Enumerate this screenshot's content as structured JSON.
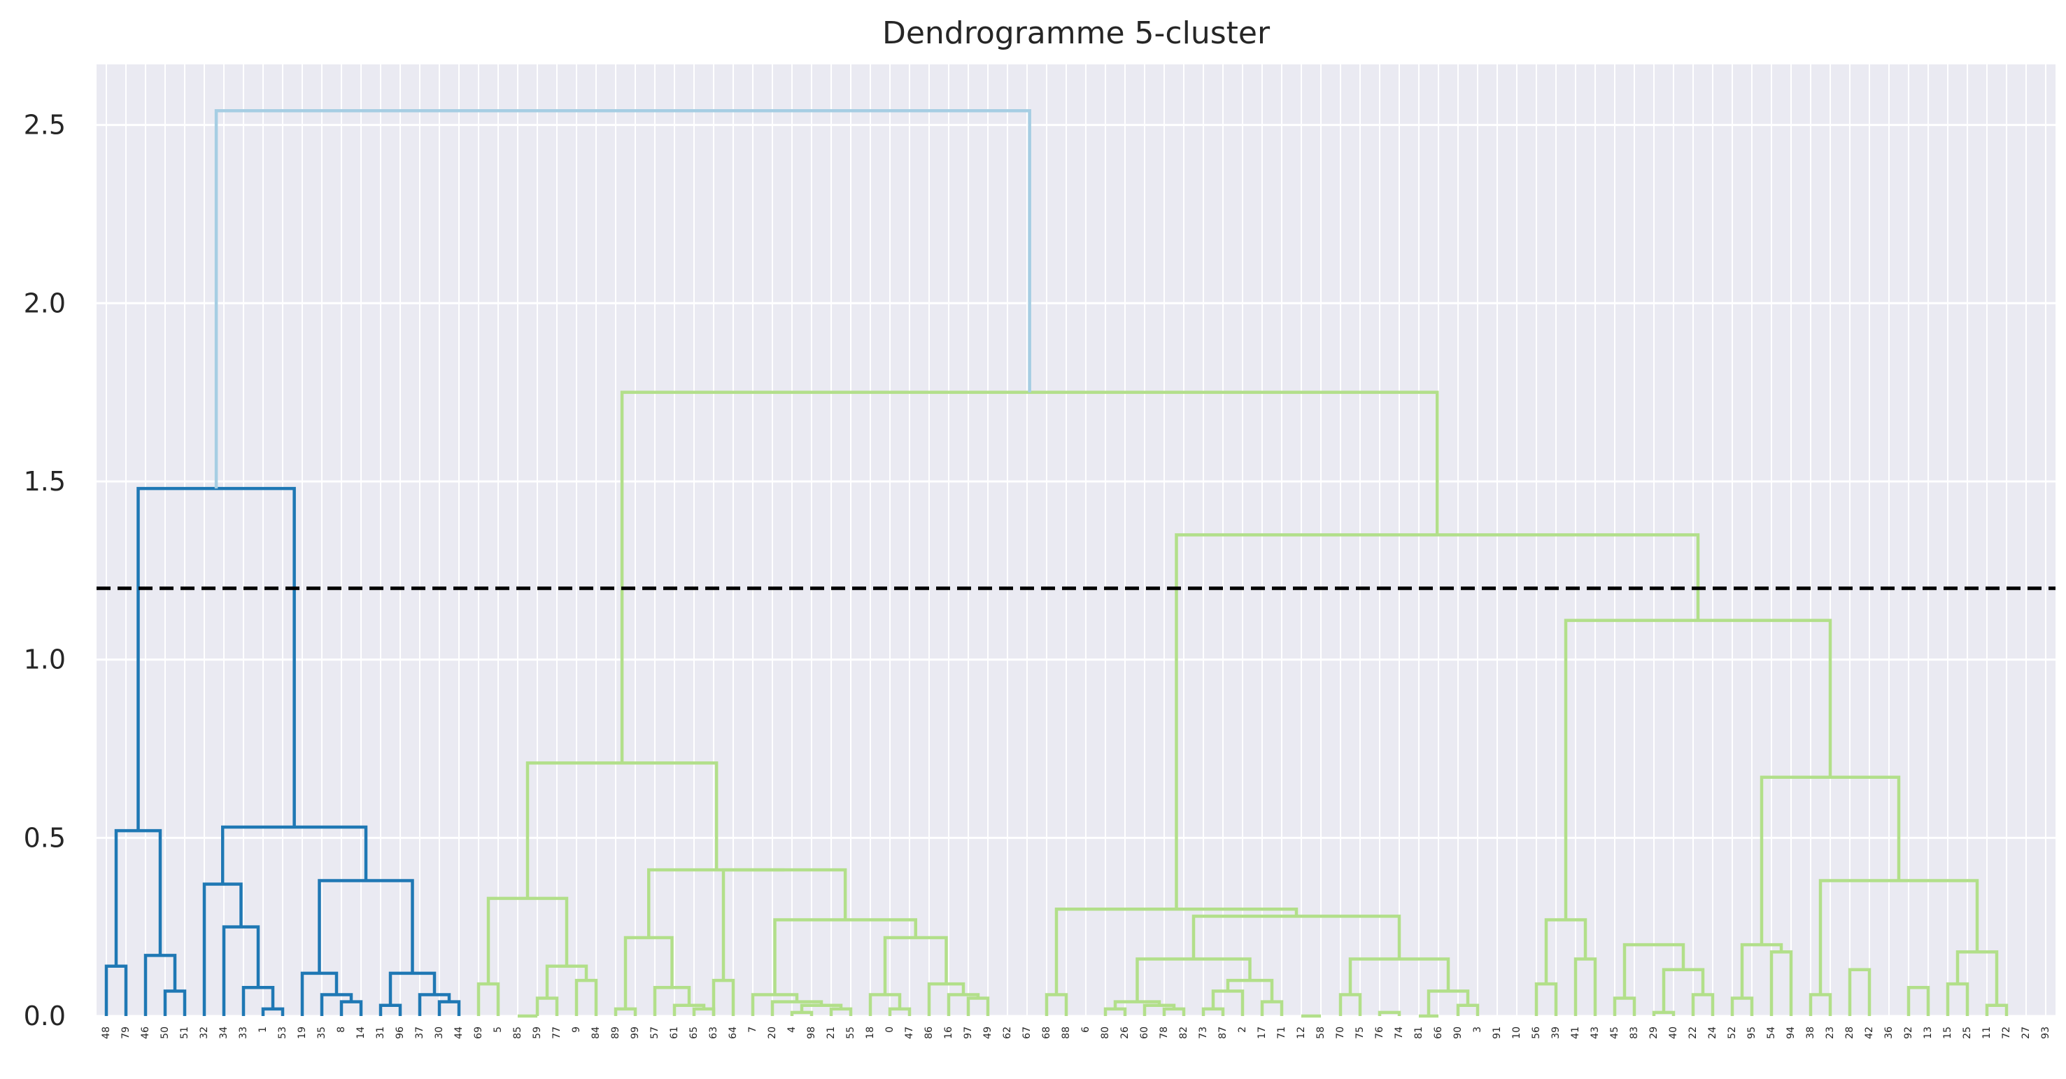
{
  "chart_data": {
    "type": "dendrogram",
    "title": "Dendrogramme 5-cluster",
    "xlabel": "",
    "ylabel": "",
    "ylim": [
      0,
      2.67
    ],
    "yticks": [
      0.0,
      0.5,
      1.0,
      1.5,
      2.0,
      2.5
    ],
    "ytick_labels": [
      "0.0",
      "0.5",
      "1.0",
      "1.5",
      "2.0",
      "2.5"
    ],
    "grid": true,
    "cut_height": 1.2,
    "colors": {
      "background": "#eaeaf2",
      "grid": "#ffffff",
      "cluster_blue": "#1f78b4",
      "cluster_green": "#b2df8a",
      "above_threshold": "#a6cee3",
      "cut_line": "#000000"
    },
    "leaves": [
      "48",
      "79",
      "46",
      "50",
      "51",
      "32",
      "34",
      "33",
      "1",
      "53",
      "19",
      "35",
      "8",
      "14",
      "31",
      "96",
      "37",
      "30",
      "44",
      "69",
      "5",
      "85",
      "59",
      "77",
      "9",
      "84",
      "89",
      "99",
      "57",
      "61",
      "65",
      "63",
      "64",
      "7",
      "20",
      "4",
      "98",
      "21",
      "55",
      "18",
      "0",
      "47",
      "86",
      "16",
      "97",
      "49",
      "62",
      "67",
      "68",
      "88",
      "6",
      "80",
      "26",
      "60",
      "78",
      "82",
      "73",
      "87",
      "2",
      "17",
      "71",
      "12",
      "58",
      "70",
      "75",
      "76",
      "74",
      "81",
      "66",
      "90",
      "3",
      "91",
      "10",
      "56",
      "39",
      "41",
      "43",
      "45",
      "83",
      "29",
      "40",
      "22",
      "24",
      "52",
      "95",
      "54",
      "94",
      "38",
      "23",
      "28",
      "42",
      "36",
      "92",
      "13",
      "15",
      "25",
      "11",
      "72",
      "27",
      "93"
    ],
    "links": [
      {
        "children": [
          0,
          1
        ],
        "height": 0.14,
        "color": "blue"
      },
      {
        "children": [
          3,
          4
        ],
        "height": 0.07,
        "color": "blue"
      },
      {
        "children": [
          2,
          "L1"
        ],
        "height": 0.17,
        "color": "blue"
      },
      {
        "children": [
          "L0",
          "L2"
        ],
        "height": 0.52,
        "color": "blue"
      },
      {
        "children": [
          8,
          9
        ],
        "height": 0.02,
        "color": "blue"
      },
      {
        "children": [
          7,
          "L4"
        ],
        "height": 0.08,
        "color": "blue"
      },
      {
        "children": [
          6,
          "L5"
        ],
        "height": 0.25,
        "color": "blue"
      },
      {
        "children": [
          5,
          "L6"
        ],
        "height": 0.37,
        "color": "blue"
      },
      {
        "children": [
          12,
          13
        ],
        "height": 0.04,
        "color": "blue"
      },
      {
        "children": [
          11,
          "L8"
        ],
        "height": 0.06,
        "color": "blue"
      },
      {
        "children": [
          10,
          "L9"
        ],
        "height": 0.12,
        "color": "blue"
      },
      {
        "children": [
          17,
          18
        ],
        "height": 0.04,
        "color": "blue"
      },
      {
        "children": [
          16,
          "L11"
        ],
        "height": 0.06,
        "color": "blue"
      },
      {
        "children": [
          14,
          15
        ],
        "height": 0.03,
        "color": "blue"
      },
      {
        "children": [
          "L13",
          "L12"
        ],
        "height": 0.12,
        "color": "blue"
      },
      {
        "children": [
          "L10",
          "L14"
        ],
        "height": 0.38,
        "color": "blue"
      },
      {
        "children": [
          "L7",
          "L15"
        ],
        "height": 0.53,
        "color": "blue"
      },
      {
        "children": [
          "L3",
          "L16"
        ],
        "height": 1.48,
        "color": "blue"
      },
      {
        "children": [
          19,
          20
        ],
        "height": 0.09,
        "color": "green"
      },
      {
        "children": [
          21,
          22
        ],
        "height": 0.0,
        "color": "green"
      },
      {
        "children": [
          22,
          23
        ],
        "height": 0.05,
        "color": "green"
      },
      {
        "children": [
          24,
          25
        ],
        "height": 0.1,
        "color": "green"
      },
      {
        "children": [
          "L20",
          "L21"
        ],
        "height": 0.14,
        "color": "green"
      },
      {
        "children": [
          "L18",
          "L22"
        ],
        "height": 0.33,
        "color": "green"
      },
      {
        "children": [
          26,
          27
        ],
        "height": 0.02,
        "color": "green"
      },
      {
        "children": [
          30,
          31
        ],
        "height": 0.02,
        "color": "green"
      },
      {
        "children": [
          29,
          "L25"
        ],
        "height": 0.03,
        "color": "green"
      },
      {
        "children": [
          28,
          "L26"
        ],
        "height": 0.08,
        "color": "green"
      },
      {
        "children": [
          "L24",
          "L27"
        ],
        "height": 0.22,
        "color": "green"
      },
      {
        "children": [
          31,
          32
        ],
        "height": 0.1,
        "color": "green"
      },
      {
        "children": [
          35,
          36
        ],
        "height": 0.01,
        "color": "green"
      },
      {
        "children": [
          37,
          38
        ],
        "height": 0.02,
        "color": "green"
      },
      {
        "children": [
          "L30",
          "L31"
        ],
        "height": 0.03,
        "color": "green"
      },
      {
        "children": [
          34,
          "L32"
        ],
        "height": 0.04,
        "color": "green"
      },
      {
        "children": [
          33,
          "L33"
        ],
        "height": 0.06,
        "color": "green"
      },
      {
        "children": [
          40,
          41
        ],
        "height": 0.02,
        "color": "green"
      },
      {
        "children": [
          39,
          "L35"
        ],
        "height": 0.06,
        "color": "green"
      },
      {
        "children": [
          44,
          45
        ],
        "height": 0.05,
        "color": "green"
      },
      {
        "children": [
          43,
          "L37"
        ],
        "height": 0.06,
        "color": "green"
      },
      {
        "children": [
          42,
          "L38"
        ],
        "height": 0.09,
        "color": "green"
      },
      {
        "children": [
          "L36",
          "L39"
        ],
        "height": 0.22,
        "color": "green"
      },
      {
        "children": [
          "L34",
          "L40"
        ],
        "height": 0.27,
        "color": "green"
      },
      {
        "children": [
          "L29",
          "L41"
        ],
        "height": 0.41,
        "color": "green"
      },
      {
        "children": [
          "L28",
          "L42"
        ],
        "height": 0.41,
        "color": "green"
      },
      {
        "children": [
          "L23",
          "L43"
        ],
        "height": 0.71,
        "color": "green"
      },
      {
        "children": [
          48,
          49
        ],
        "height": 0.06,
        "color": "green"
      },
      {
        "children": [
          51,
          52
        ],
        "height": 0.02,
        "color": "green"
      },
      {
        "children": [
          54,
          55
        ],
        "height": 0.02,
        "color": "green"
      },
      {
        "children": [
          53,
          "L47"
        ],
        "height": 0.03,
        "color": "green"
      },
      {
        "children": [
          "L46",
          "L48"
        ],
        "height": 0.04,
        "color": "green"
      },
      {
        "children": [
          56,
          57
        ],
        "height": 0.02,
        "color": "green"
      },
      {
        "children": [
          58,
          "L50"
        ],
        "height": 0.07,
        "color": "green"
      },
      {
        "children": [
          59,
          60
        ],
        "height": 0.04,
        "color": "green"
      },
      {
        "children": [
          "L51",
          "L52"
        ],
        "height": 0.1,
        "color": "green"
      },
      {
        "children": [
          "L49",
          "L53"
        ],
        "height": 0.16,
        "color": "green"
      },
      {
        "children": [
          61,
          62
        ],
        "height": 0.0,
        "color": "green"
      },
      {
        "children": [
          63,
          64
        ],
        "height": 0.06,
        "color": "green"
      },
      {
        "children": [
          65,
          66
        ],
        "height": 0.01,
        "color": "green"
      },
      {
        "children": [
          67,
          68
        ],
        "height": 0.0,
        "color": "green"
      },
      {
        "children": [
          69,
          70
        ],
        "height": 0.03,
        "color": "green"
      },
      {
        "children": [
          "L58",
          "L59"
        ],
        "height": 0.07,
        "color": "green"
      },
      {
        "children": [
          "L56",
          "L60"
        ],
        "height": 0.16,
        "color": "green"
      },
      {
        "children": [
          "L54",
          "L61"
        ],
        "height": 0.28,
        "color": "green"
      },
      {
        "children": [
          "L45",
          "L62"
        ],
        "height": 0.3,
        "color": "green"
      },
      {
        "children": [
          73,
          74
        ],
        "height": 0.09,
        "color": "green"
      },
      {
        "children": [
          75,
          76
        ],
        "height": 0.16,
        "color": "green"
      },
      {
        "children": [
          "L64",
          "L65"
        ],
        "height": 0.27,
        "color": "green"
      },
      {
        "children": [
          77,
          78
        ],
        "height": 0.05,
        "color": "green"
      },
      {
        "children": [
          79,
          80
        ],
        "height": 0.01,
        "color": "green"
      },
      {
        "children": [
          81,
          82
        ],
        "height": 0.06,
        "color": "green"
      },
      {
        "children": [
          "L68",
          "L69"
        ],
        "height": 0.13,
        "color": "green"
      },
      {
        "children": [
          "L67",
          "L70"
        ],
        "height": 0.2,
        "color": "green"
      },
      {
        "children": [
          83,
          84
        ],
        "height": 0.05,
        "color": "green"
      },
      {
        "children": [
          85,
          86
        ],
        "height": 0.18,
        "color": "green"
      },
      {
        "children": [
          "L72",
          "L73"
        ],
        "height": 0.2,
        "color": "green"
      },
      {
        "children": [
          87,
          88
        ],
        "height": 0.06,
        "color": "green"
      },
      {
        "children": [
          89,
          90
        ],
        "height": 0.13,
        "color": "green"
      },
      {
        "children": [
          92,
          93
        ],
        "height": 0.08,
        "color": "green"
      },
      {
        "children": [
          94,
          95
        ],
        "height": 0.09,
        "color": "green"
      },
      {
        "children": [
          96,
          97
        ],
        "height": 0.03,
        "color": "green"
      },
      {
        "children": [
          "L78",
          "L79"
        ],
        "height": 0.18,
        "color": "green"
      },
      {
        "children": [
          "L75",
          "L80"
        ],
        "height": 0.38,
        "color": "green"
      },
      {
        "children": [
          "L74",
          "L81"
        ],
        "height": 0.67,
        "color": "green"
      },
      {
        "children": [
          "L66",
          "L82"
        ],
        "height": 1.11,
        "color": "green"
      },
      {
        "children": [
          "L63",
          "L83"
        ],
        "height": 1.35,
        "color": "green"
      },
      {
        "children": [
          "L44",
          "L84"
        ],
        "height": 1.75,
        "color": "green"
      },
      {
        "children": [
          "L17",
          "L85"
        ],
        "height": 2.54,
        "color": "above"
      }
    ]
  }
}
